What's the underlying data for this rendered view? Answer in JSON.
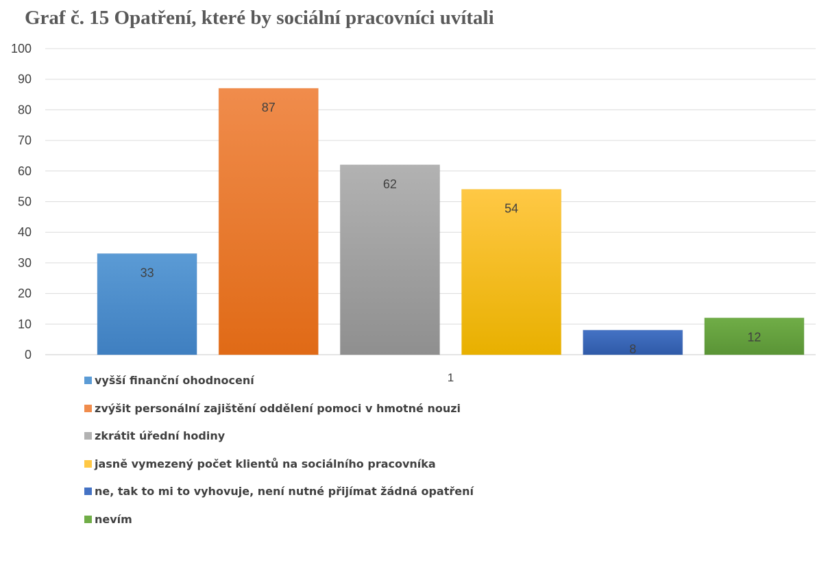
{
  "chart_data": {
    "type": "bar",
    "title": "Graf č. 15 Opatření, které by sociální pracovníci uvítali",
    "categories": [
      "1"
    ],
    "ylim": [
      0,
      100
    ],
    "yticks": [
      0,
      10,
      20,
      30,
      40,
      50,
      60,
      70,
      80,
      90,
      100
    ],
    "grid": true,
    "legend_position": "bottom-left",
    "series": [
      {
        "name": "vyšší finanční ohodnocení",
        "values": [
          33
        ],
        "color": "#5b9bd5",
        "color_dark": "#3f7fc0"
      },
      {
        "name": "zvýšit personální zajištění oddělení pomoci v hmotné nouzi",
        "values": [
          87
        ],
        "color": "#f08c4c",
        "color_dark": "#e06a16"
      },
      {
        "name": "zkrátit úřední hodiny",
        "values": [
          62
        ],
        "color": "#b2b2b2",
        "color_dark": "#8f8f8f"
      },
      {
        "name": "jasně vymezený počet klientů na sociálního pracovníka",
        "values": [
          54
        ],
        "color": "#ffc845",
        "color_dark": "#e8b000"
      },
      {
        "name": "ne, tak to mi to vyhovuje, není nutné přijímat žádná opatření",
        "values": [
          8
        ],
        "color": "#4472c4",
        "color_dark": "#2f5aa8"
      },
      {
        "name": "nevím",
        "values": [
          12
        ],
        "color": "#70ad47",
        "color_dark": "#5a9436"
      }
    ]
  }
}
